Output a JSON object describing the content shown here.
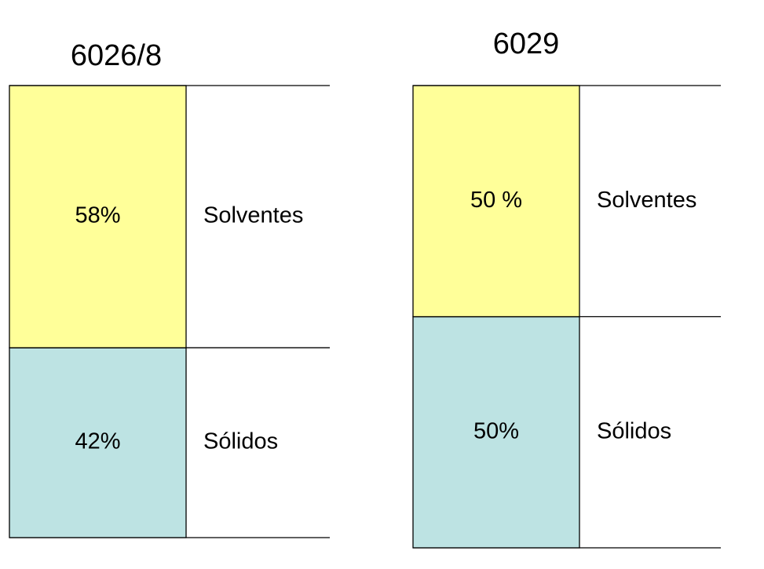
{
  "chart_data": [
    {
      "type": "bar",
      "stacked": true,
      "title": "6026/8",
      "categories": [
        null
      ],
      "series": [
        {
          "name": "Sólidos",
          "color": "#bde3e3",
          "values": [
            42
          ],
          "value_labels": [
            "42%"
          ]
        },
        {
          "name": "Solventes",
          "color": "#ffff99",
          "values": [
            58
          ],
          "value_labels": [
            "58%"
          ]
        }
      ]
    },
    {
      "type": "bar",
      "stacked": true,
      "title": "6029",
      "categories": [
        null
      ],
      "series": [
        {
          "name": "Sólidos",
          "color": "#bde3e3",
          "values": [
            50
          ],
          "value_labels": [
            "50%"
          ]
        },
        {
          "name": "Solventes",
          "color": "#ffff99",
          "values": [
            50
          ],
          "value_labels": [
            "50 %"
          ]
        }
      ]
    }
  ]
}
